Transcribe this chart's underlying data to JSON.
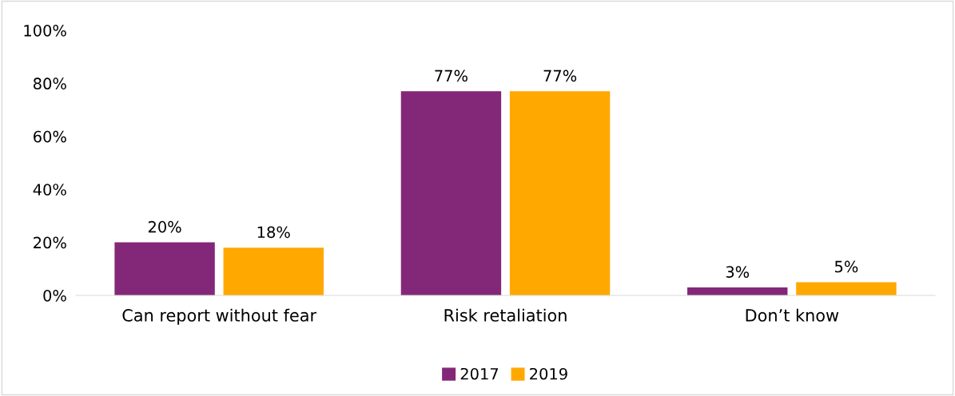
{
  "chart_data": {
    "type": "bar",
    "categories": [
      "Can report without fear",
      "Risk retaliation",
      "Don’t know"
    ],
    "series": [
      {
        "name": "2017",
        "color": "#832878",
        "values": [
          20,
          77,
          3
        ],
        "value_labels": [
          "20%",
          "77%",
          "3%"
        ]
      },
      {
        "name": "2019",
        "color": "#ffa800",
        "values": [
          18,
          77,
          5
        ],
        "value_labels": [
          "18%",
          "77%",
          "5%"
        ]
      }
    ],
    "ylim": [
      0,
      100
    ],
    "yticks": [
      {
        "value": 0,
        "label": "0%"
      },
      {
        "value": 20,
        "label": "20%"
      },
      {
        "value": 40,
        "label": "40%"
      },
      {
        "value": 60,
        "label": "60%"
      },
      {
        "value": 80,
        "label": "80%"
      },
      {
        "value": 100,
        "label": "100%"
      }
    ],
    "grid": false,
    "legend": "bottom"
  }
}
